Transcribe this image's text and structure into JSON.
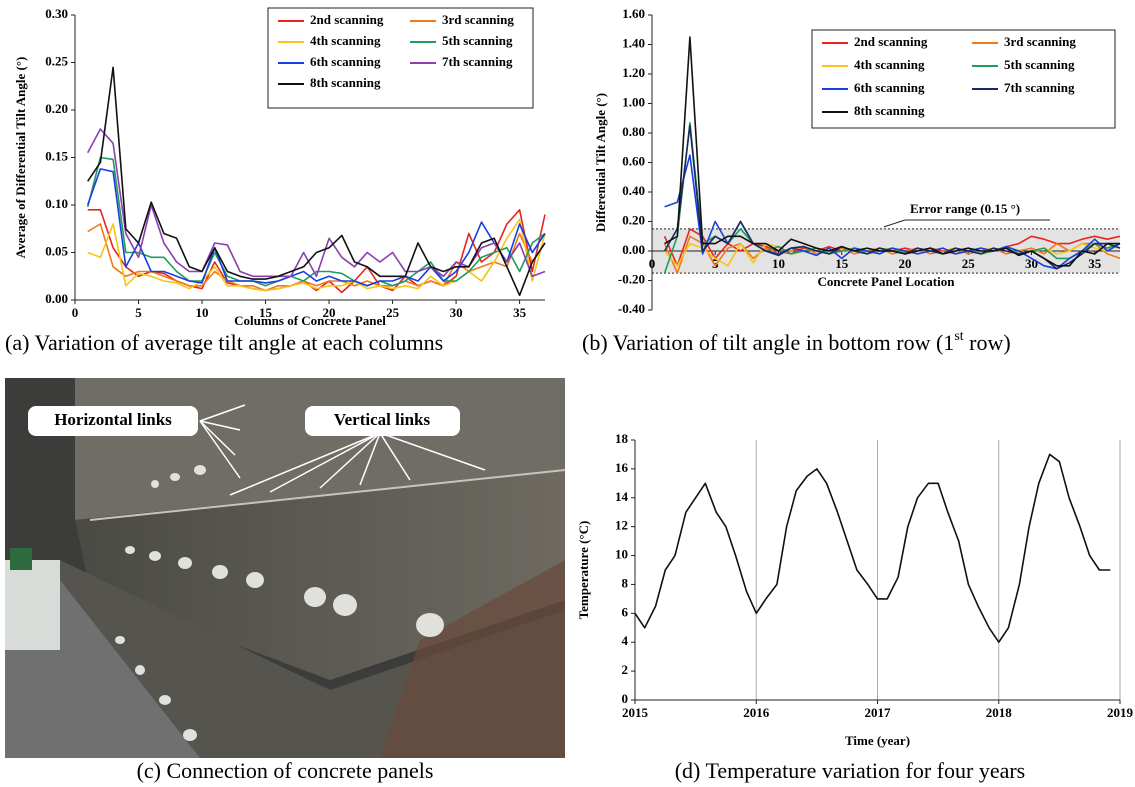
{
  "chart_data": [
    {
      "type": "line",
      "caption": "(a) Variation of average tilt angle at each columns",
      "x_label": "Columns of Concrete Panel",
      "y_label": "Average of Differential Tilt Angle (°)",
      "xlim": [
        0,
        37
      ],
      "xticks": [
        0,
        5,
        10,
        15,
        20,
        25,
        30,
        35
      ],
      "ylim": [
        0,
        0.3
      ],
      "yticks": [
        {
          "value": 0,
          "label": "0.00"
        },
        {
          "value": 0.05,
          "label": "0.05"
        },
        {
          "value": 0.1,
          "label": "0.10"
        },
        {
          "value": 0.15,
          "label": "0.15"
        },
        {
          "value": 0.2,
          "label": "0.20"
        },
        {
          "value": 0.25,
          "label": "0.25"
        },
        {
          "value": 0.3,
          "label": "0.30"
        }
      ],
      "x": [
        1,
        2,
        3,
        4,
        5,
        6,
        7,
        8,
        9,
        10,
        11,
        12,
        13,
        14,
        15,
        16,
        17,
        18,
        19,
        20,
        21,
        22,
        23,
        24,
        25,
        26,
        27,
        28,
        29,
        30,
        31,
        32,
        33,
        34,
        35,
        36,
        37
      ],
      "series": [
        {
          "name": "2nd scanning",
          "color": "#e8261f",
          "values": [
            0.095,
            0.095,
            0.055,
            0.035,
            0.025,
            0.03,
            0.028,
            0.02,
            0.015,
            0.012,
            0.04,
            0.018,
            0.015,
            0.012,
            0.01,
            0.012,
            0.015,
            0.02,
            0.01,
            0.02,
            0.008,
            0.02,
            0.035,
            0.015,
            0.01,
            0.025,
            0.015,
            0.02,
            0.015,
            0.025,
            0.07,
            0.04,
            0.05,
            0.08,
            0.095,
            0.03,
            0.09
          ]
        },
        {
          "name": "3rd scanning",
          "color": "#f07a1a",
          "values": [
            0.072,
            0.08,
            0.035,
            0.025,
            0.03,
            0.03,
            0.025,
            0.02,
            0.015,
            0.015,
            0.03,
            0.02,
            0.015,
            0.015,
            0.01,
            0.015,
            0.015,
            0.02,
            0.015,
            0.02,
            0.02,
            0.015,
            0.02,
            0.015,
            0.015,
            0.02,
            0.015,
            0.02,
            0.015,
            0.04,
            0.03,
            0.035,
            0.04,
            0.035,
            0.07,
            0.04,
            0.06
          ]
        },
        {
          "name": "4th scanning",
          "color": "#f5c518",
          "values": [
            0.05,
            0.045,
            0.08,
            0.015,
            0.028,
            0.025,
            0.02,
            0.018,
            0.012,
            0.02,
            0.035,
            0.015,
            0.015,
            0.012,
            0.01,
            0.012,
            0.015,
            0.018,
            0.012,
            0.015,
            0.015,
            0.02,
            0.012,
            0.015,
            0.012,
            0.015,
            0.012,
            0.025,
            0.015,
            0.02,
            0.03,
            0.02,
            0.04,
            0.065,
            0.085,
            0.02,
            0.07
          ]
        },
        {
          "name": "5th scanning",
          "color": "#1f9e5a",
          "values": [
            0.098,
            0.15,
            0.148,
            0.05,
            0.05,
            0.045,
            0.045,
            0.03,
            0.02,
            0.02,
            0.05,
            0.025,
            0.02,
            0.02,
            0.015,
            0.02,
            0.025,
            0.02,
            0.03,
            0.03,
            0.028,
            0.02,
            0.015,
            0.02,
            0.015,
            0.02,
            0.03,
            0.04,
            0.02,
            0.02,
            0.03,
            0.045,
            0.05,
            0.055,
            0.03,
            0.06,
            0.07
          ]
        },
        {
          "name": "6th scanning",
          "color": "#1a3fe0",
          "values": [
            0.1,
            0.138,
            0.135,
            0.035,
            0.06,
            0.03,
            0.03,
            0.025,
            0.02,
            0.018,
            0.055,
            0.02,
            0.02,
            0.02,
            0.018,
            0.02,
            0.025,
            0.03,
            0.02,
            0.025,
            0.02,
            0.02,
            0.015,
            0.02,
            0.02,
            0.025,
            0.02,
            0.035,
            0.02,
            0.03,
            0.05,
            0.082,
            0.06,
            0.04,
            0.08,
            0.05,
            0.07
          ]
        },
        {
          "name": "7th scanning",
          "color": "#8b3fb0",
          "values": [
            0.155,
            0.18,
            0.165,
            0.07,
            0.045,
            0.1,
            0.06,
            0.04,
            0.03,
            0.03,
            0.06,
            0.058,
            0.03,
            0.025,
            0.025,
            0.025,
            0.025,
            0.05,
            0.025,
            0.065,
            0.045,
            0.035,
            0.05,
            0.04,
            0.05,
            0.03,
            0.03,
            0.035,
            0.025,
            0.04,
            0.035,
            0.055,
            0.06,
            0.04,
            0.06,
            0.025,
            0.03
          ]
        },
        {
          "name": "8th scanning",
          "color": "#111111",
          "values": [
            0.125,
            0.145,
            0.245,
            0.075,
            0.06,
            0.103,
            0.07,
            0.065,
            0.035,
            0.03,
            0.055,
            0.03,
            0.025,
            0.022,
            0.022,
            0.025,
            0.03,
            0.035,
            0.05,
            0.055,
            0.068,
            0.04,
            0.035,
            0.025,
            0.025,
            0.025,
            0.06,
            0.035,
            0.03,
            0.035,
            0.035,
            0.06,
            0.065,
            0.035,
            0.005,
            0.04,
            0.06
          ]
        }
      ]
    },
    {
      "type": "line",
      "caption": "(b) Variation of tilt angle in bottom row (1",
      "caption_superscript": "st",
      "caption_end": " row)",
      "x_label": "Concrete Panel Location",
      "y_label": "Differential Tilt  Angle (°)",
      "annotation": "Error range (0.15 °)",
      "error_range": [
        -0.15,
        0.15
      ],
      "xlim": [
        0,
        37
      ],
      "xticks": [
        0,
        5,
        10,
        15,
        20,
        25,
        30,
        35
      ],
      "ylim": [
        -0.4,
        1.6
      ],
      "yticks": [
        {
          "value": -0.4,
          "label": "-0.40"
        },
        {
          "value": -0.2,
          "label": "-0.20"
        },
        {
          "value": 0,
          "label": "0.00"
        },
        {
          "value": 0.2,
          "label": "0.20"
        },
        {
          "value": 0.4,
          "label": "0.40"
        },
        {
          "value": 0.6,
          "label": "0.60"
        },
        {
          "value": 0.8,
          "label": "0.80"
        },
        {
          "value": 1,
          "label": "1.00"
        },
        {
          "value": 1.2,
          "label": "1.20"
        },
        {
          "value": 1.4,
          "label": "1.40"
        },
        {
          "value": 1.6,
          "label": "1.60"
        }
      ],
      "x": [
        1,
        2,
        3,
        4,
        5,
        6,
        7,
        8,
        9,
        10,
        11,
        12,
        13,
        14,
        15,
        16,
        17,
        18,
        19,
        20,
        21,
        22,
        23,
        24,
        25,
        26,
        27,
        28,
        29,
        30,
        31,
        32,
        33,
        34,
        35,
        36,
        37
      ],
      "series": [
        {
          "name": "2nd scanning",
          "color": "#e8261f",
          "values": [
            0.1,
            -0.1,
            0.15,
            0.1,
            -0.05,
            0.05,
            0.0,
            0.05,
            0.03,
            0.0,
            -0.02,
            0.02,
            0.0,
            0.03,
            0.0,
            0.02,
            0.0,
            0.02,
            0.0,
            0.02,
            0.0,
            0.02,
            0.0,
            -0.02,
            0.0,
            0.02,
            0.0,
            0.03,
            0.05,
            0.1,
            0.08,
            0.05,
            0.05,
            0.08,
            0.1,
            0.08,
            0.1
          ]
        },
        {
          "name": "3rd scanning",
          "color": "#f07a1a",
          "values": [
            0.05,
            -0.15,
            0.1,
            0.05,
            -0.1,
            0.02,
            0.05,
            -0.05,
            0.02,
            -0.02,
            0.0,
            0.03,
            -0.02,
            0.0,
            0.02,
            -0.02,
            0.0,
            0.02,
            -0.02,
            0.0,
            0.02,
            -0.02,
            0.0,
            0.02,
            -0.02,
            0.0,
            0.02,
            -0.02,
            0.0,
            0.02,
            -0.02,
            0.05,
            0.0,
            0.05,
            0.05,
            -0.02,
            -0.05
          ]
        },
        {
          "name": "4th scanning",
          "color": "#f5c518",
          "values": [
            0.0,
            -0.1,
            0.05,
            0.02,
            -0.05,
            -0.1,
            0.05,
            -0.08,
            0.05,
            0.03,
            -0.02,
            0.0,
            0.02,
            -0.02,
            0.0,
            0.02,
            -0.02,
            0.0,
            0.02,
            -0.02,
            0.0,
            0.02,
            -0.02,
            0.0,
            0.02,
            -0.02,
            0.0,
            0.02,
            -0.02,
            0.0,
            0.02,
            -0.02,
            0.0,
            0.05,
            0.02,
            0.0,
            0.05
          ]
        },
        {
          "name": "5th scanning",
          "color": "#1f9e5a",
          "values": [
            -0.15,
            0.1,
            0.87,
            0.05,
            0.1,
            0.05,
            0.15,
            0.05,
            0.0,
            0.03,
            -0.02,
            0.0,
            0.02,
            -0.02,
            0.0,
            0.02,
            -0.02,
            0.0,
            0.02,
            -0.02,
            0.0,
            0.02,
            -0.02,
            0.0,
            0.02,
            -0.02,
            0.0,
            0.02,
            -0.02,
            0.0,
            0.02,
            -0.05,
            -0.05,
            0.0,
            0.05,
            0.02,
            0.05
          ]
        },
        {
          "name": "6th scanning",
          "color": "#1a3fe0",
          "values": [
            0.3,
            0.33,
            0.65,
            -0.02,
            0.2,
            0.05,
            0.2,
            0.05,
            0.0,
            -0.02,
            0.02,
            0.0,
            -0.03,
            0.02,
            -0.05,
            0.02,
            0.0,
            -0.02,
            0.02,
            0.0,
            -0.02,
            0.0,
            0.02,
            -0.02,
            0.0,
            0.02,
            0.0,
            0.03,
            0.0,
            -0.05,
            -0.1,
            -0.12,
            -0.05,
            0.0,
            0.08,
            0.0,
            0.05
          ]
        },
        {
          "name": "7th scanning",
          "color": "#1b2a5e",
          "values": [
            0.0,
            0.15,
            0.85,
            0.0,
            0.1,
            0.05,
            0.2,
            0.05,
            0.0,
            -0.03,
            0.02,
            0.03,
            0.0,
            -0.02,
            0.03,
            0.0,
            -0.02,
            0.02,
            0.0,
            -0.02,
            0.02,
            0.0,
            -0.02,
            0.02,
            0.0,
            -0.02,
            0.02,
            0.0,
            -0.02,
            0.0,
            -0.05,
            -0.12,
            -0.08,
            -0.02,
            0.05,
            0.05,
            0.02
          ]
        },
        {
          "name": "8th scanning",
          "color": "#111111",
          "values": [
            0.05,
            0.1,
            1.45,
            0.05,
            0.05,
            0.1,
            0.1,
            0.05,
            0.05,
            0,
            0.08,
            0.05,
            0.02,
            0,
            0.03,
            0,
            0.02,
            0,
            0,
            -0.02,
            0,
            0.02,
            -0.02,
            0,
            0.02,
            0,
            0,
            0.02,
            -0.03,
            0,
            -0.05,
            -0.1,
            -0.1,
            0,
            -0.02,
            0.05,
            0.05
          ]
        }
      ]
    },
    {
      "type": "line",
      "caption": "(d) Temperature variation for four years",
      "x_label": "Time (year)",
      "y_label": "Temperature (°C)",
      "grid": "x",
      "color": "#111111",
      "xlim": [
        2015,
        2019
      ],
      "xticks": [
        2015,
        2016,
        2017,
        2018,
        2019
      ],
      "ylim": [
        0,
        18
      ],
      "yticks": [
        0,
        2,
        4,
        6,
        8,
        10,
        12,
        14,
        16,
        18
      ],
      "x": [
        2015,
        2015.08,
        2015.17,
        2015.25,
        2015.33,
        2015.42,
        2015.5,
        2015.58,
        2015.67,
        2015.75,
        2015.83,
        2015.92,
        2016,
        2016.08,
        2016.17,
        2016.25,
        2016.33,
        2016.42,
        2016.5,
        2016.58,
        2016.67,
        2016.75,
        2016.83,
        2016.92,
        2017,
        2017.08,
        2017.17,
        2017.25,
        2017.33,
        2017.42,
        2017.5,
        2017.58,
        2017.67,
        2017.75,
        2017.83,
        2017.92,
        2018,
        2018.08,
        2018.17,
        2018.25,
        2018.33,
        2018.42,
        2018.5,
        2018.58,
        2018.67,
        2018.75,
        2018.83,
        2018.92
      ],
      "values": [
        6,
        5,
        6.5,
        9,
        10,
        13,
        14,
        15,
        13,
        12,
        10,
        7.5,
        6,
        7,
        8,
        12,
        14.5,
        15.5,
        16,
        15,
        13,
        11,
        9,
        8,
        7,
        7,
        8.5,
        12,
        14,
        15,
        15,
        13,
        11,
        8,
        6.5,
        5,
        4,
        5,
        8,
        12,
        15,
        17,
        16.5,
        14,
        12,
        10,
        9,
        9
      ]
    }
  ],
  "photo": {
    "caption": "(c) Connection of concrete panels",
    "labels": [
      "Horizontal links",
      "Vertical links"
    ]
  }
}
